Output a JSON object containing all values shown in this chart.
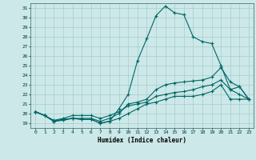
{
  "xlabel": "Humidex (Indice chaleur)",
  "background_color": "#cce8e8",
  "grid_color": "#aacccc",
  "line_color": "#006666",
  "xlim": [
    -0.5,
    23.5
  ],
  "ylim": [
    18.5,
    31.5
  ],
  "yticks": [
    19,
    20,
    21,
    22,
    23,
    24,
    25,
    26,
    27,
    28,
    29,
    30,
    31
  ],
  "xticks": [
    0,
    1,
    2,
    3,
    4,
    5,
    6,
    7,
    8,
    9,
    10,
    11,
    12,
    13,
    14,
    15,
    16,
    17,
    18,
    19,
    20,
    21,
    22,
    23
  ],
  "series": [
    [
      20.2,
      19.8,
      19.2,
      19.3,
      19.5,
      19.4,
      19.4,
      19.0,
      19.2,
      20.5,
      22.0,
      25.5,
      27.8,
      30.2,
      31.2,
      30.5,
      30.3,
      28.0,
      27.5,
      27.3,
      25.0,
      22.5,
      22.8,
      21.5
    ],
    [
      20.2,
      19.8,
      19.2,
      19.4,
      19.5,
      19.5,
      19.5,
      19.2,
      19.5,
      20.0,
      21.0,
      21.2,
      21.5,
      22.5,
      23.0,
      23.2,
      23.3,
      23.4,
      23.5,
      23.8,
      24.8,
      23.3,
      22.8,
      21.5
    ],
    [
      20.2,
      19.8,
      19.3,
      19.5,
      19.8,
      19.8,
      19.8,
      19.5,
      19.8,
      20.2,
      20.8,
      21.0,
      21.2,
      21.8,
      22.0,
      22.2,
      22.3,
      22.5,
      22.8,
      23.0,
      23.5,
      22.5,
      22.0,
      21.5
    ],
    [
      20.2,
      19.8,
      19.2,
      19.4,
      19.5,
      19.4,
      19.4,
      19.0,
      19.2,
      19.5,
      20.0,
      20.5,
      21.0,
      21.2,
      21.5,
      21.8,
      21.8,
      21.8,
      22.0,
      22.3,
      23.0,
      21.5,
      21.5,
      21.5
    ]
  ]
}
